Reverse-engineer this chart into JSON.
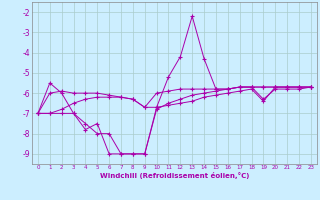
{
  "xlabel": "Windchill (Refroidissement éolien,°C)",
  "background_color": "#cceeff",
  "grid_color": "#aacccc",
  "line_color": "#aa00aa",
  "x_ticks": [
    0,
    1,
    2,
    3,
    4,
    5,
    6,
    7,
    8,
    9,
    10,
    11,
    12,
    13,
    14,
    15,
    16,
    17,
    18,
    19,
    20,
    21,
    22,
    23
  ],
  "ylim": [
    -9.5,
    -1.5
  ],
  "y_ticks": [
    -9,
    -8,
    -7,
    -6,
    -5,
    -4,
    -3,
    -2
  ],
  "series": [
    [
      -7.0,
      -5.5,
      -6.0,
      -7.0,
      -7.8,
      -7.5,
      -9.0,
      -9.0,
      -9.0,
      -9.0,
      -6.7,
      -5.2,
      -4.2,
      -2.2,
      -4.3,
      -5.8,
      -5.8,
      -5.7,
      -5.7,
      -6.3,
      -5.8,
      -5.8,
      -5.8,
      -5.7
    ],
    [
      -7.0,
      -6.0,
      -5.9,
      -6.0,
      -6.0,
      -6.0,
      -6.1,
      -6.2,
      -6.3,
      -6.7,
      -6.0,
      -5.9,
      -5.8,
      -5.8,
      -5.8,
      -5.8,
      -5.8,
      -5.7,
      -5.7,
      -5.7,
      -5.7,
      -5.7,
      -5.7,
      -5.7
    ],
    [
      -7.0,
      -7.0,
      -7.0,
      -7.0,
      -7.5,
      -8.0,
      -8.0,
      -9.0,
      -9.0,
      -9.0,
      -6.8,
      -6.5,
      -6.3,
      -6.1,
      -6.0,
      -5.9,
      -5.8,
      -5.7,
      -5.7,
      -5.7,
      -5.7,
      -5.7,
      -5.7,
      -5.7
    ],
    [
      -7.0,
      -7.0,
      -6.8,
      -6.5,
      -6.3,
      -6.2,
      -6.2,
      -6.2,
      -6.3,
      -6.7,
      -6.7,
      -6.6,
      -6.5,
      -6.4,
      -6.2,
      -6.1,
      -6.0,
      -5.9,
      -5.8,
      -6.4,
      -5.7,
      -5.7,
      -5.7,
      -5.7
    ]
  ],
  "figsize": [
    3.2,
    2.0
  ],
  "dpi": 100
}
